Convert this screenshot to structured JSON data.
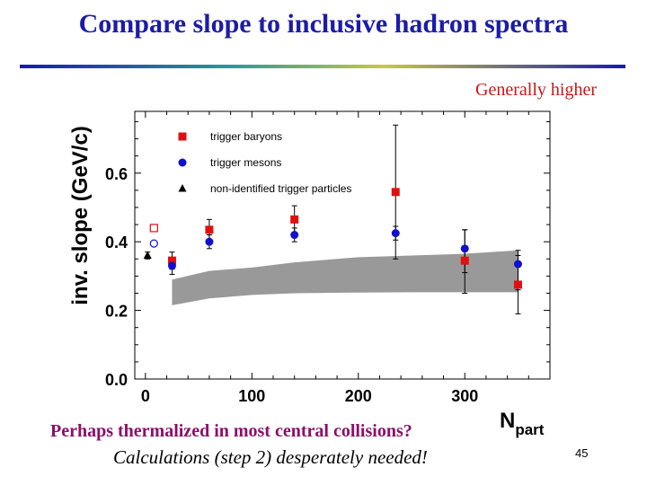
{
  "slide": {
    "title": "Compare slope to inclusive hadron spectra",
    "note": "Generally higher",
    "question": "Perhaps thermalized in most central collisions?",
    "calc_note": "Calculations (step 2) desperately needed!",
    "page_number": "45"
  },
  "chart_data": {
    "type": "scatter",
    "xlabel": "N",
    "xlabel_sub": "part",
    "ylabel": "inv. slope (GeV/c)",
    "xlim": [
      -10,
      380
    ],
    "ylim": [
      0.0,
      0.78
    ],
    "xticks": [
      0,
      100,
      200,
      300
    ],
    "yticks": [
      0.0,
      0.2,
      0.4,
      0.6
    ],
    "ytick_labels": [
      "0.0",
      "0.2",
      "0.4",
      "0.6"
    ],
    "grid": false,
    "legend_position": "top-left",
    "series": [
      {
        "name": "trigger baryons",
        "marker": "square",
        "color": "#e01010",
        "points": [
          {
            "x": 25,
            "y": 0.345,
            "lo": 0.32,
            "hi": 0.37
          },
          {
            "x": 60,
            "y": 0.435,
            "lo": 0.405,
            "hi": 0.465
          },
          {
            "x": 140,
            "y": 0.465,
            "lo": 0.425,
            "hi": 0.505
          },
          {
            "x": 235,
            "y": 0.545,
            "lo": 0.35,
            "hi": 0.74
          },
          {
            "x": 300,
            "y": 0.345,
            "lo": 0.25,
            "hi": 0.435
          },
          {
            "x": 350,
            "y": 0.275,
            "lo": 0.19,
            "hi": 0.36
          }
        ]
      },
      {
        "name": "trigger mesons",
        "marker": "circle",
        "color": "#1010d0",
        "points": [
          {
            "x": 25,
            "y": 0.33,
            "lo": 0.305,
            "hi": 0.355
          },
          {
            "x": 60,
            "y": 0.4,
            "lo": 0.38,
            "hi": 0.42
          },
          {
            "x": 140,
            "y": 0.42,
            "lo": 0.4,
            "hi": 0.44
          },
          {
            "x": 235,
            "y": 0.425,
            "lo": 0.405,
            "hi": 0.445
          },
          {
            "x": 300,
            "y": 0.38,
            "lo": 0.31,
            "hi": 0.435
          },
          {
            "x": 350,
            "y": 0.335,
            "lo": 0.26,
            "hi": 0.375
          }
        ]
      },
      {
        "name": "non-identified trigger particles",
        "marker": "triangle",
        "color": "#000000",
        "points": [
          {
            "x": 2,
            "y": 0.36,
            "lo": 0.35,
            "hi": 0.37
          }
        ]
      }
    ],
    "reference_points": [
      {
        "marker": "open-square",
        "color": "#e01010",
        "x": 8,
        "y": 0.44
      },
      {
        "marker": "open-circle",
        "color": "#1010d0",
        "x": 8,
        "y": 0.395
      }
    ],
    "band": {
      "color": "#999999",
      "x": [
        25,
        60,
        100,
        140,
        200,
        250,
        300,
        350
      ],
      "lower": [
        0.215,
        0.235,
        0.245,
        0.25,
        0.252,
        0.253,
        0.253,
        0.253
      ],
      "upper": [
        0.29,
        0.315,
        0.325,
        0.34,
        0.355,
        0.36,
        0.365,
        0.375
      ]
    }
  }
}
